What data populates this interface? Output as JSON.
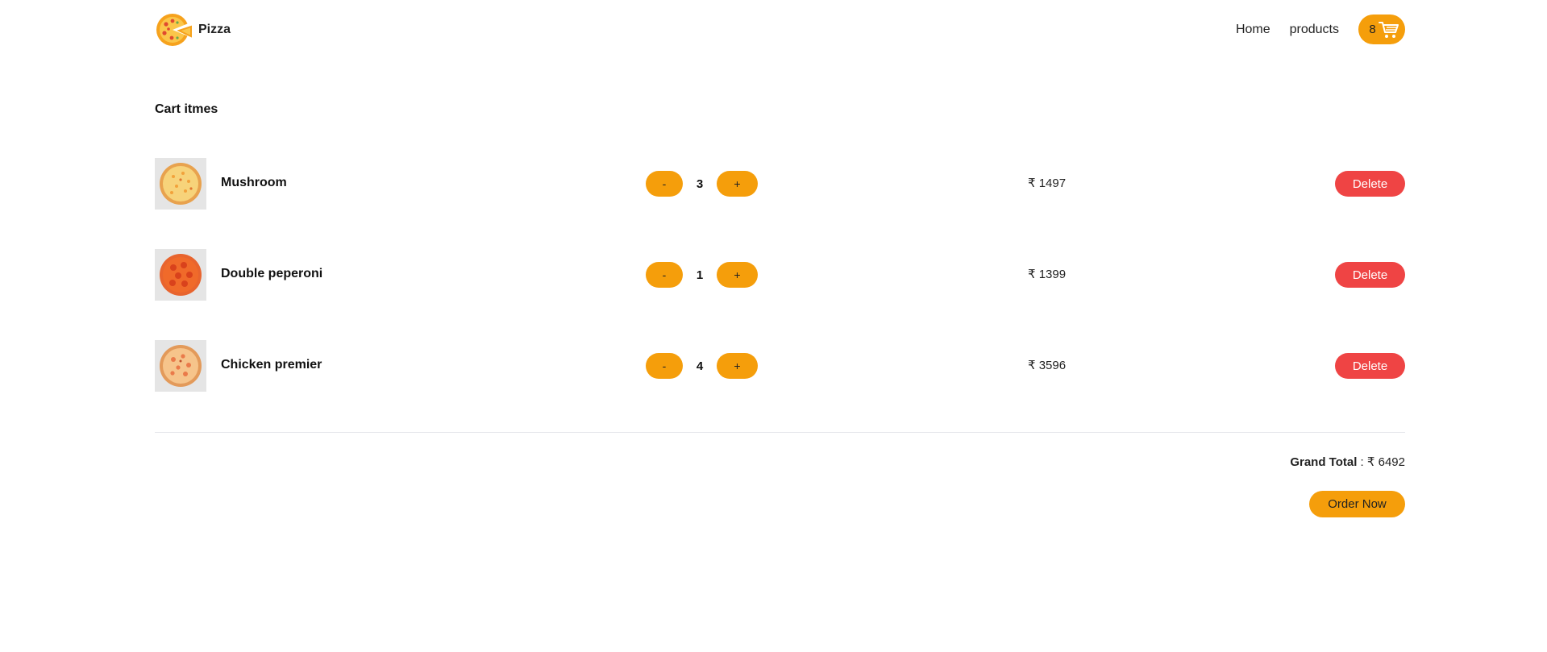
{
  "header": {
    "brand": "Pizza",
    "logo_icon": "pizza-logo-icon",
    "nav": [
      {
        "label": "Home"
      },
      {
        "label": "products"
      }
    ],
    "cart": {
      "count": "8",
      "icon": "shopping-cart-icon"
    }
  },
  "cart": {
    "title": "Cart itmes",
    "items": [
      {
        "name": "Mushroom",
        "quantity": "3",
        "price": "₹ 1497",
        "minus": "-",
        "plus": "+",
        "delete": "Delete"
      },
      {
        "name": "Double peperoni",
        "quantity": "1",
        "price": "₹ 1399",
        "minus": "-",
        "plus": "+",
        "delete": "Delete"
      },
      {
        "name": "Chicken premier",
        "quantity": "4",
        "price": "₹ 3596",
        "minus": "-",
        "plus": "+",
        "delete": "Delete"
      }
    ],
    "grand_total_label": "Grand Total",
    "grand_total_sep": " : ",
    "grand_total_value": "₹ 6492",
    "order_button": "Order Now"
  },
  "colors": {
    "accent": "#f59e0b",
    "danger": "#ef4444",
    "divider": "#e5e7eb"
  }
}
